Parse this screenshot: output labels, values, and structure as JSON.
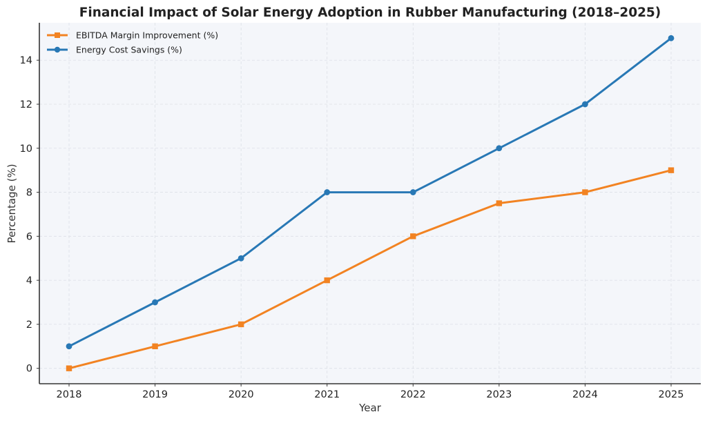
{
  "chart_data": {
    "type": "line",
    "title": "Financial Impact of Solar Energy Adoption in Rubber Manufacturing (2018–2025)",
    "xlabel": "Year",
    "ylabel": "Percentage (%)",
    "categories": [
      "2018",
      "2019",
      "2020",
      "2021",
      "2022",
      "2023",
      "2024",
      "2025"
    ],
    "ylim": [
      -0.7,
      15.7
    ],
    "yticks": [
      0,
      2,
      4,
      6,
      8,
      10,
      12,
      14
    ],
    "grid": true,
    "legend_position": "top-left",
    "series": [
      {
        "name": "EBITDA Margin Improvement (%)",
        "values": [
          0,
          1,
          2,
          4,
          6,
          7.5,
          8,
          9
        ],
        "color": "#f28322",
        "marker": "square"
      },
      {
        "name": "Energy Cost Savings (%)",
        "values": [
          1,
          3,
          5,
          8,
          8,
          10,
          12,
          15
        ],
        "color": "#2878b5",
        "marker": "circle"
      }
    ],
    "plot_background": "#f4f6fa"
  }
}
